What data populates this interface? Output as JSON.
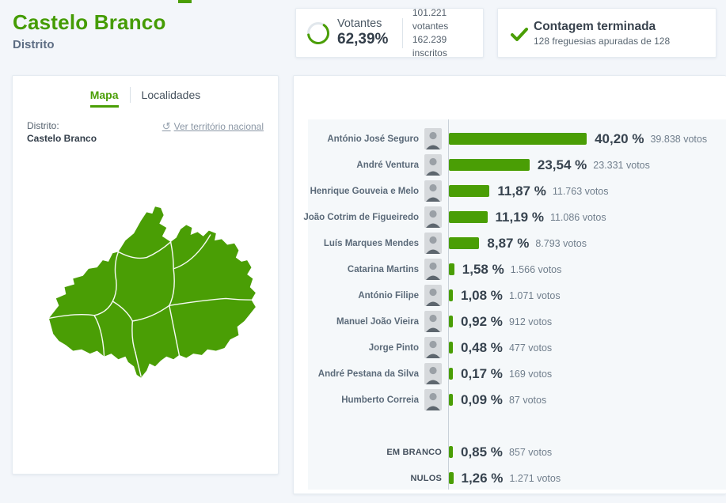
{
  "top_nav": {
    "active_indicator": ""
  },
  "header": {
    "title": "Castelo Branco",
    "subtitle": "Distrito"
  },
  "turnout_card": {
    "label": "Votantes",
    "percent": "62,39%",
    "percent_value": 62.39,
    "voters": "101.221 votantes",
    "registered": "162.239 inscritos"
  },
  "status_card": {
    "title": "Contagem terminada",
    "detail": "128 freguesias apuradas de 128"
  },
  "map_panel": {
    "tab_map": "Mapa",
    "tab_localities": "Localidades",
    "region_type_label": "Distrito:",
    "region_name": "Castelo Branco",
    "national_link": "Ver território nacional"
  },
  "colors": {
    "accent_green": "#4a9e05",
    "text_dark": "#37434f",
    "text_muted": "#707e8c",
    "chart_bg": "#f5f8fa"
  },
  "chart_data": {
    "type": "bar",
    "orientation": "horizontal",
    "value_unit": "percent",
    "x_max_percent": 40.2,
    "title": "",
    "series": [
      {
        "name": "António José Seguro",
        "percent": 40.2,
        "percent_label": "40,20 %",
        "votes": 39838,
        "votes_label": "39.838 votos",
        "slot": 0,
        "has_photo": true
      },
      {
        "name": "André Ventura",
        "percent": 23.54,
        "percent_label": "23,54 %",
        "votes": 23331,
        "votes_label": "23.331 votos",
        "slot": 1,
        "has_photo": true
      },
      {
        "name": "Henrique Gouveia e Melo",
        "percent": 11.87,
        "percent_label": "11,87 %",
        "votes": 11763,
        "votes_label": "11.763 votos",
        "slot": 2,
        "has_photo": true
      },
      {
        "name": "João Cotrim de Figueiredo",
        "percent": 11.19,
        "percent_label": "11,19 %",
        "votes": 11086,
        "votes_label": "11.086 votos",
        "slot": 3,
        "has_photo": true
      },
      {
        "name": "Luís Marques Mendes",
        "percent": 8.87,
        "percent_label": "8,87 %",
        "votes": 8793,
        "votes_label": "8.793 votos",
        "slot": 4,
        "has_photo": true
      },
      {
        "name": "Catarina Martins",
        "percent": 1.58,
        "percent_label": "1,58 %",
        "votes": 1566,
        "votes_label": "1.566 votos",
        "slot": 5,
        "has_photo": true
      },
      {
        "name": "António Filipe",
        "percent": 1.08,
        "percent_label": "1,08 %",
        "votes": 1071,
        "votes_label": "1.071 votos",
        "slot": 6,
        "has_photo": true
      },
      {
        "name": "Manuel João Vieira",
        "percent": 0.92,
        "percent_label": "0,92 %",
        "votes": 912,
        "votes_label": "912 votos",
        "slot": 7,
        "has_photo": true
      },
      {
        "name": "Jorge Pinto",
        "percent": 0.48,
        "percent_label": "0,48 %",
        "votes": 477,
        "votes_label": "477 votos",
        "slot": 8,
        "has_photo": true
      },
      {
        "name": "André Pestana da Silva",
        "percent": 0.17,
        "percent_label": "0,17 %",
        "votes": 169,
        "votes_label": "169 votos",
        "slot": 9,
        "has_photo": true
      },
      {
        "name": "Humberto Correia",
        "percent": 0.09,
        "percent_label": "0,09 %",
        "votes": 87,
        "votes_label": "87 votos",
        "slot": 10,
        "has_photo": true
      },
      {
        "name": "EM BRANCO",
        "percent": 0.85,
        "percent_label": "0,85 %",
        "votes": 857,
        "votes_label": "857 votos",
        "slot": 12,
        "has_photo": false
      },
      {
        "name": "NULOS",
        "percent": 1.26,
        "percent_label": "1,26 %",
        "votes": 1271,
        "votes_label": "1.271 votos",
        "slot": 13,
        "has_photo": false
      }
    ]
  }
}
